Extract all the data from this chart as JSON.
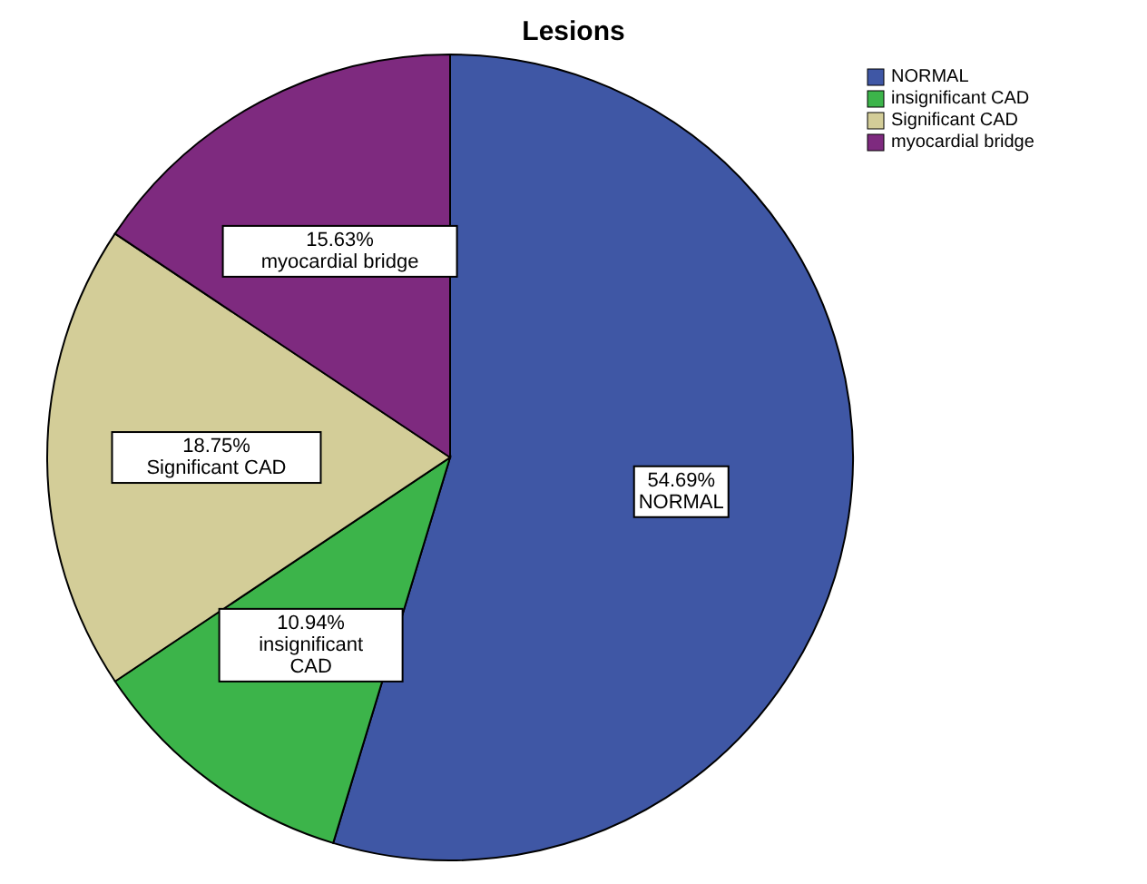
{
  "chart_data": {
    "type": "pie",
    "title": "Lesions",
    "categories": [
      "NORMAL",
      "insignificant CAD",
      "Significant CAD",
      "myocardial bridge"
    ],
    "values": [
      54.69,
      10.94,
      18.75,
      15.63
    ],
    "value_labels": [
      "54.69%",
      "10.94%",
      "18.75%",
      "15.63%"
    ],
    "colors": [
      "#3f57a5",
      "#3cb44a",
      "#d3cd98",
      "#7e2a7f"
    ],
    "legend": "top right"
  }
}
